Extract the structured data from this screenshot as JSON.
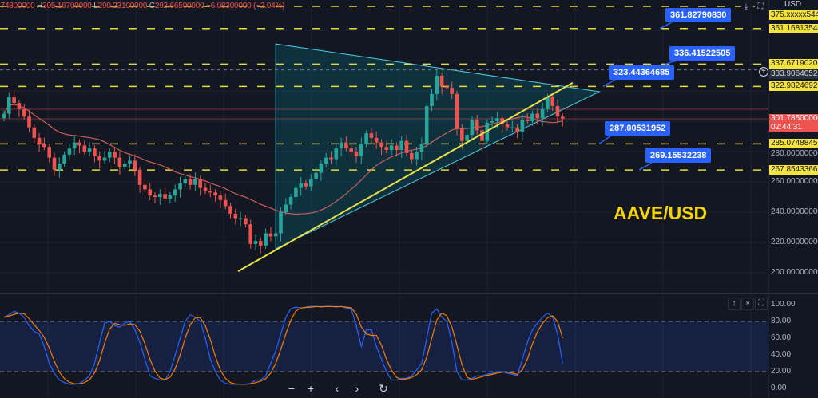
{
  "header": {
    "open": ".74800000",
    "high_key": "H",
    "high": "305.16700000",
    "low_key": "L",
    "low": "290.23100000",
    "close_key": "C",
    "close": "292.66500000",
    "change": "−6.08300000 (−2.04%)"
  },
  "pair_label": "AAVE/USD",
  "currency_badge": "USD",
  "colors": {
    "background": "#131722",
    "up": "#26a69a",
    "down": "#ef5350",
    "level": "#e6d93a",
    "callout": "#2962ff",
    "triangle": "#4dd0e1",
    "trendline": "#e8e04a",
    "ma": "#c75f5f",
    "stoch_k": "#2962ff",
    "stoch_d": "#f57c00"
  },
  "chart_data": [
    {
      "type": "candlestick",
      "title": "",
      "closes": [
        305,
        316,
        312,
        308,
        303,
        296,
        289,
        285,
        283,
        276,
        268,
        272,
        278,
        282,
        286,
        284,
        280,
        282,
        277,
        274,
        276,
        280,
        276,
        270,
        272,
        274,
        268,
        258,
        255,
        251,
        250,
        252,
        249,
        251,
        255,
        259,
        262,
        258,
        262,
        256,
        254,
        253,
        251,
        248,
        244,
        239,
        236,
        236,
        232,
        219,
        221,
        218,
        226,
        224,
        226,
        240,
        245,
        250,
        256,
        259,
        257,
        262,
        266,
        272,
        276,
        275,
        282,
        286,
        282,
        280,
        277,
        285,
        292,
        289,
        286,
        283,
        281,
        284,
        281,
        287,
        279,
        275,
        280,
        285,
        310,
        318,
        330,
        323,
        322,
        318,
        295,
        287,
        291,
        301,
        294,
        287,
        299,
        300,
        302,
        298,
        296,
        296,
        293,
        301,
        300,
        305,
        302,
        308,
        316,
        310,
        303,
        301.79
      ],
      "ylim": [
        195,
        380
      ],
      "yticks": [
        "280.00000000",
        "260.00000000",
        "240.00000000",
        "220.00000000",
        "200.00000000"
      ],
      "ytick_values": [
        280,
        260,
        240,
        220,
        200
      ],
      "moving_average_period": 20,
      "levels": [
        {
          "price": 375.8,
          "label_start": "375",
          "label_end": "544"
        },
        {
          "price": 361.16813544,
          "label": "361.16813544"
        },
        {
          "price": 337.67190207,
          "label": "337.67190207"
        },
        {
          "price": 322.98246929,
          "label": "322.98246929"
        },
        {
          "price": 285.07488457,
          "label": "285.07488457"
        },
        {
          "price": 267.85433661,
          "label": "267.85433661"
        }
      ],
      "crosshair": {
        "price": 333.90640523,
        "label": "333.90640523"
      },
      "last_price": {
        "price": 301.785,
        "label": "301.785000000",
        "countdown": "02:44:31"
      },
      "red_lines": [
        307.9,
        301.6
      ],
      "callouts": [
        {
          "text": "361.82790830",
          "price": 361.16813544
        },
        {
          "text": "336.41522505",
          "price": 337.67190207
        },
        {
          "text": "323.44364685",
          "price": 322.98246929
        },
        {
          "text": "287.00531952",
          "price": 285.07488457
        },
        {
          "text": "269.15532238",
          "price": 267.85433661
        }
      ],
      "triangle": [
        [
          54,
          351
        ],
        [
          118.3,
          319.5
        ],
        [
          54,
          215.8
        ]
      ],
      "trendline": [
        [
          46.5,
          201
        ],
        [
          113,
          325.3
        ]
      ]
    },
    {
      "type": "line",
      "title": "",
      "series": [
        {
          "values": [
            85,
            88,
            92,
            90,
            85,
            75,
            68,
            65,
            50,
            30,
            18,
            10,
            7,
            5,
            5,
            6,
            10,
            15,
            30,
            55,
            78,
            80,
            75,
            73,
            78,
            80,
            70,
            55,
            35,
            15,
            12,
            10,
            10,
            20,
            40,
            60,
            80,
            88,
            85,
            80,
            60,
            35,
            20,
            10,
            6,
            5,
            5,
            5,
            5,
            6,
            10,
            10,
            15,
            30,
            45,
            65,
            85,
            95,
            97,
            96,
            97,
            98,
            98,
            97,
            98,
            98,
            97,
            98,
            96,
            95,
            75,
            50,
            70,
            70,
            50,
            35,
            20,
            10,
            10,
            12,
            12,
            15,
            22,
            30,
            60,
            90,
            95,
            85,
            80,
            55,
            20,
            10,
            10,
            12,
            15,
            15,
            17,
            18,
            20,
            20,
            18,
            17,
            15,
            35,
            55,
            70,
            78,
            85,
            90,
            85,
            65,
            30
          ]
        }
      ],
      "d_smoothing": 3,
      "ylim": [
        0,
        100
      ],
      "band": [
        20,
        80
      ],
      "yticks": [
        "100.00",
        "80.00",
        "60.00",
        "40.00",
        "20.00",
        "0.00"
      ],
      "ytick_values": [
        100,
        80,
        60,
        40,
        20,
        0
      ]
    }
  ],
  "pane_buttons": {
    "up": "↑",
    "close": "×",
    "maximize": "⛶",
    "download": "⤓"
  },
  "nav": {
    "zoom_out": "−",
    "zoom_in": "+",
    "left": "‹",
    "right": "›",
    "reset": "↻"
  }
}
